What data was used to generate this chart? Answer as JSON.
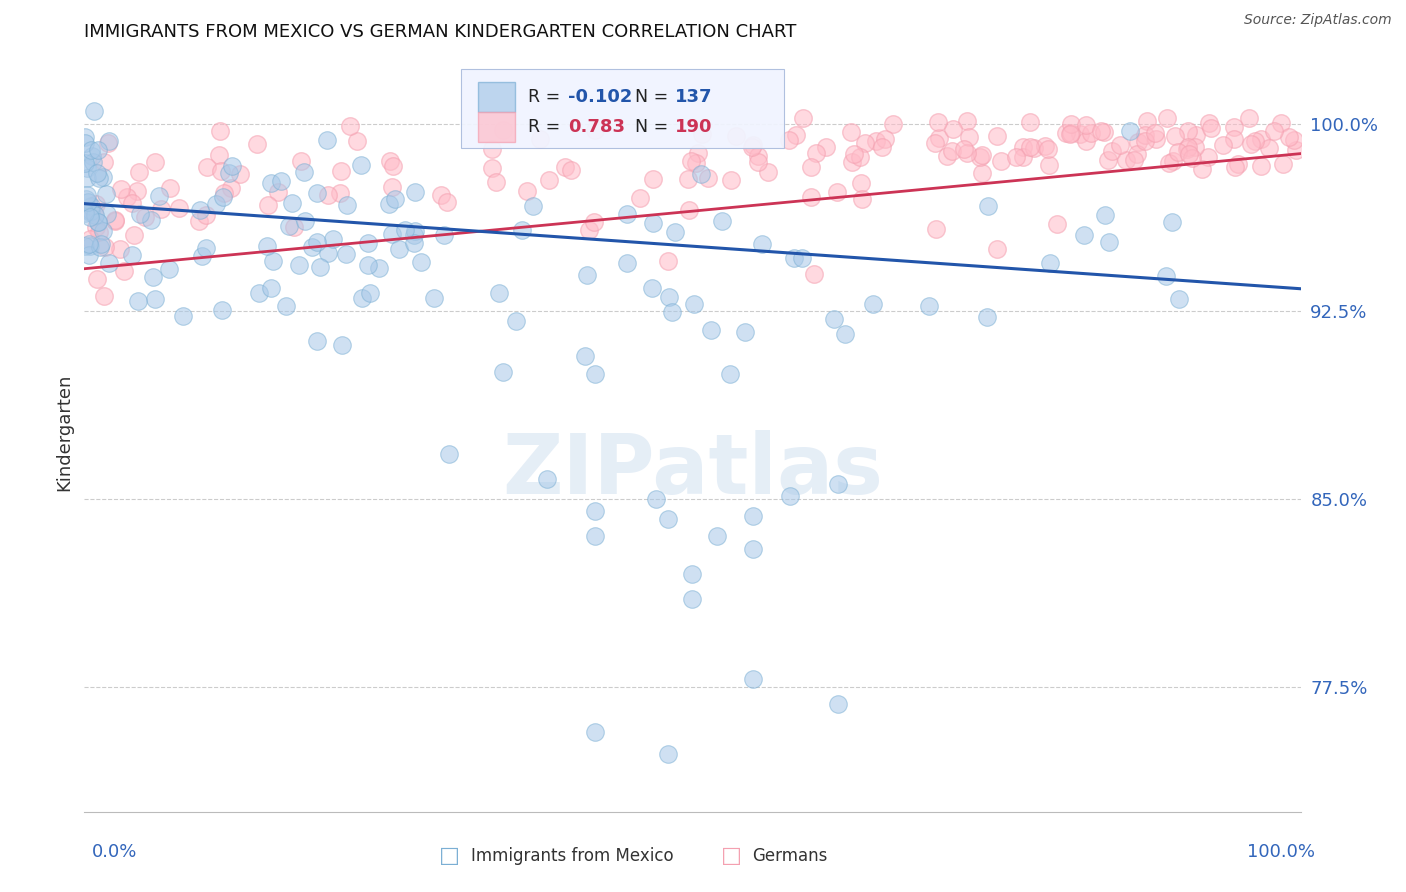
{
  "title": "IMMIGRANTS FROM MEXICO VS GERMAN KINDERGARTEN CORRELATION CHART",
  "source": "Source: ZipAtlas.com",
  "ylabel": "Kindergarten",
  "ytick_labels": [
    "77.5%",
    "85.0%",
    "92.5%",
    "100.0%"
  ],
  "ytick_values": [
    0.775,
    0.85,
    0.925,
    1.0
  ],
  "ymin": 0.725,
  "ymax": 1.028,
  "xmin": 0.0,
  "xmax": 1.0,
  "legend_blue_label": "Immigrants from Mexico",
  "legend_pink_label": "Germans",
  "R_blue": -0.102,
  "N_blue": 137,
  "R_pink": 0.783,
  "N_pink": 190,
  "blue_color": "#7BAFD4",
  "pink_color": "#F4A0B0",
  "blue_fill": "#A8C8E8",
  "pink_fill": "#FFBBC8",
  "blue_line_color": "#2255AA",
  "pink_line_color": "#CC3355",
  "watermark": "ZIPatlas",
  "background_color": "#FFFFFF",
  "grid_color": "#CCCCCC",
  "axis_label_color": "#3366BB",
  "legend_box_color": "#F0F4FF",
  "blue_line_y0": 0.968,
  "blue_line_y1": 0.934,
  "pink_line_y0": 0.942,
  "pink_line_y1": 0.988
}
